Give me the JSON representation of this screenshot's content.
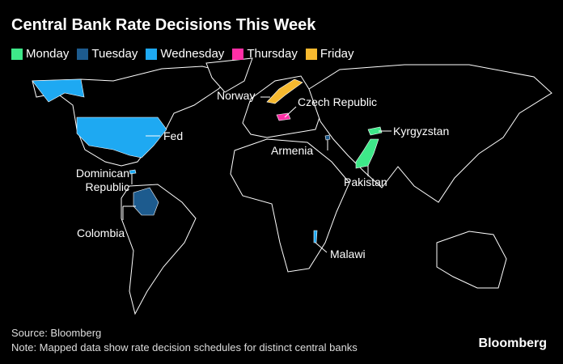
{
  "title": "Central Bank Rate Decisions This Week",
  "legend": [
    {
      "label": "Monday",
      "color": "#3ee889"
    },
    {
      "label": "Tuesday",
      "color": "#1d5b8e"
    },
    {
      "label": "Wednesday",
      "color": "#1ea9f2"
    },
    {
      "label": "Thursday",
      "color": "#ff2fa6"
    },
    {
      "label": "Friday",
      "color": "#f6b92f"
    }
  ],
  "regions": [
    {
      "label": "Norway",
      "color": "#f6b92f"
    },
    {
      "label": "Czech Republic",
      "color": "#ff2fa6"
    },
    {
      "label": "Fed",
      "color": "#1ea9f2"
    },
    {
      "label": "Kyrgyzstan",
      "color": "#3ee889"
    },
    {
      "label": "Armenia",
      "color": "#1d5b8e"
    },
    {
      "label": "Pakistan",
      "color": "#3ee889"
    },
    {
      "label": "Dominican Republic",
      "color": "#1ea9f2"
    },
    {
      "label": "Colombia",
      "color": "#1d5b8e"
    },
    {
      "label": "Malawi",
      "color": "#1ea9f2"
    }
  ],
  "source": "Source: Bloomberg",
  "note": "Note: Mapped data show rate decision schedules for distinct central banks",
  "brand": "Bloomberg"
}
